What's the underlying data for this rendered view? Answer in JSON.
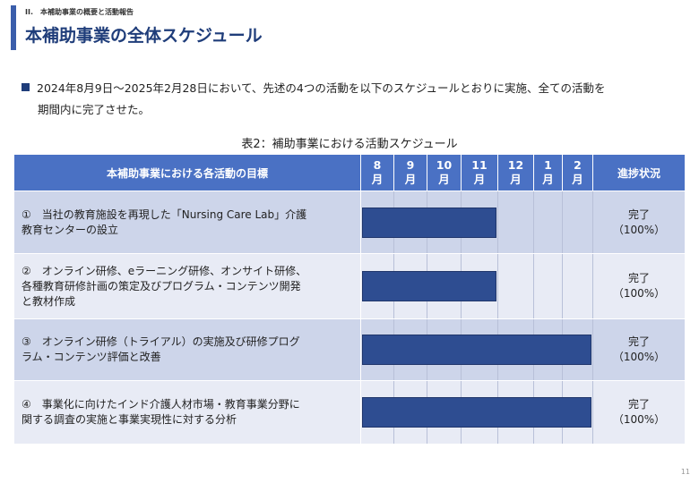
{
  "header": {
    "section": "II.　本補助事業の概要と活動報告",
    "title": "本補助事業の全体スケジュール"
  },
  "bullet": {
    "line1": "2024年8月9日～2025年2月28日において、先述の4つの活動を以下のスケジュールとおりに実施、全ての活動を",
    "line2": "期間内に完了させた。"
  },
  "table": {
    "caption": "表2：補助事業における活動スケジュール",
    "goal_header": "本補助事業における各活動の目標",
    "status_header": "進捗状況",
    "months": [
      {
        "num": "8",
        "unit": "月"
      },
      {
        "num": "9",
        "unit": "月"
      },
      {
        "num": "10",
        "unit": "月"
      },
      {
        "num": "11",
        "unit": "月"
      },
      {
        "num": "12",
        "unit": "月"
      },
      {
        "num": "1",
        "unit": "月"
      },
      {
        "num": "2",
        "unit": "月"
      }
    ],
    "rows": [
      {
        "line1": "①　当社の教育施設を再現した「Nursing Care Lab」介護",
        "line2": "教育センターの設立",
        "line3": "",
        "status1": "完了",
        "status2": "（100%）",
        "start_month": "8月",
        "end_month": "11月"
      },
      {
        "line1": "②　オンライン研修、eラーニング研修、オンサイト研修、",
        "line2": "各種教育研修計画の策定及びプログラム・コンテンツ開発",
        "line3": "と教材作成",
        "status1": "完了",
        "status2": "（100%）",
        "start_month": "8月",
        "end_month": "11月"
      },
      {
        "line1": "③　オンライン研修（トライアル）の実施及び研修プログ",
        "line2": "ラム・コンテンツ評価と改善",
        "line3": "",
        "status1": "完了",
        "status2": "（100%）",
        "start_month": "8月",
        "end_month": "2月"
      },
      {
        "line1": "④　事業化に向けたインド介護人材市場・教育事業分野に",
        "line2": "関する調査の実施と事業実現性に対する分析",
        "line3": "",
        "status1": "完了",
        "status2": "（100%）",
        "start_month": "8月",
        "end_month": "2月"
      }
    ]
  },
  "page_number": "11",
  "colors": {
    "header_fill": "#4a71c4",
    "row_fill_dark": "#cdd5ea",
    "row_fill_light": "#e8ebf5",
    "bar": "#2e4d91",
    "title": "#1f3d7a"
  }
}
